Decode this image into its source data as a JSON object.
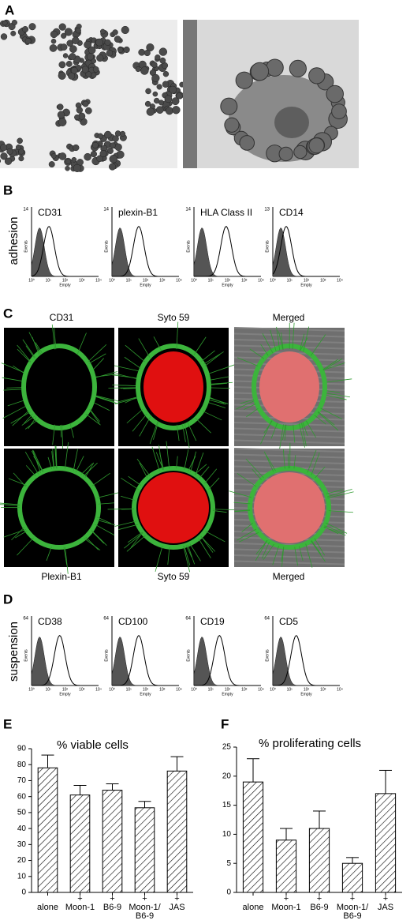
{
  "panel_labels": [
    "A",
    "B",
    "C",
    "D",
    "E",
    "F"
  ],
  "panel_b": {
    "row_label": "adhesion",
    "histograms": [
      {
        "title": "CD31",
        "y_max": 14,
        "y_label": "Events",
        "x_label": "Empty",
        "x_ticks": [
          "10⁰",
          "10¹",
          "10²",
          "10³",
          "10⁴"
        ]
      },
      {
        "title": "plexin-B1",
        "y_max": 14,
        "y_label": "Events",
        "x_label": "Empty",
        "x_ticks": [
          "10⁰",
          "10¹",
          "10²",
          "10³",
          "10⁴"
        ]
      },
      {
        "title": "HLA Class II",
        "y_max": 14,
        "y_label": "Events",
        "x_label": "Empty",
        "x_ticks": [
          "10⁰",
          "10¹",
          "10²",
          "10³",
          "10⁴"
        ]
      },
      {
        "title": "CD14",
        "y_max": 13,
        "y_label": "Events",
        "x_label": "Empty",
        "x_ticks": [
          "10⁰",
          "10¹",
          "10²",
          "10³",
          "10⁴"
        ]
      }
    ]
  },
  "panel_c": {
    "top_labels": [
      "CD31",
      "Syto 59",
      "Merged"
    ],
    "bottom_labels": [
      "Plexin-B1",
      "Syto 59",
      "Merged"
    ]
  },
  "panel_d": {
    "row_label": "suspension",
    "histograms": [
      {
        "title": "CD38",
        "y_max": 64,
        "y_label": "Events",
        "x_label": "Empty",
        "x_ticks": [
          "10⁰",
          "10¹",
          "10²",
          "10³",
          "10⁴"
        ]
      },
      {
        "title": "CD100",
        "y_max": 64,
        "y_label": "Events",
        "x_label": "Empty",
        "x_ticks": [
          "10⁰",
          "10¹",
          "10²",
          "10³",
          "10⁴"
        ]
      },
      {
        "title": "CD19",
        "y_max": 64,
        "y_label": "Events",
        "x_label": "Empty",
        "x_ticks": [
          "10⁰",
          "10¹",
          "10²",
          "10³",
          "10⁴"
        ]
      },
      {
        "title": "CD5",
        "y_max": 64,
        "y_label": "Events",
        "x_label": "Empty",
        "x_ticks": [
          "10⁰",
          "10¹",
          "10²",
          "10³",
          "10⁴"
        ]
      }
    ]
  },
  "chart_data": [
    {
      "type": "bar",
      "title": "% viable cells",
      "categories": [
        "alone",
        "+\nMoon-1",
        "+\nB6-9",
        "+\nMoon-1/\nB6-9",
        "+\nJAS"
      ],
      "values": [
        78,
        61,
        64,
        53,
        76
      ],
      "errors": [
        8,
        6,
        4,
        4,
        9
      ],
      "color": "#000000",
      "ylim": [
        0,
        90
      ],
      "yticks": [
        0,
        10,
        20,
        30,
        40,
        50,
        60,
        70,
        80,
        90
      ]
    },
    {
      "type": "bar",
      "title": "% proliferating cells",
      "categories": [
        "alone",
        "+\nMoon-1",
        "+\nB6-9",
        "+\nMoon-1/\nB6-9",
        "+\nJAS"
      ],
      "values": [
        19,
        9,
        11,
        5,
        17
      ],
      "errors": [
        4,
        2,
        3,
        1,
        4
      ],
      "color": "#000000",
      "ylim": [
        0,
        25
      ],
      "yticks": [
        0,
        5,
        10,
        15,
        20,
        25
      ]
    }
  ]
}
